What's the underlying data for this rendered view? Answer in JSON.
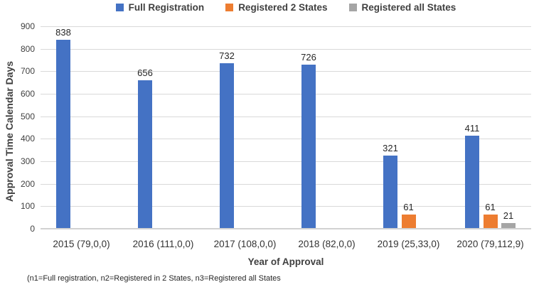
{
  "legend": [
    {
      "label": "Full Registration",
      "color": "#4472C4"
    },
    {
      "label": "Registered 2 States",
      "color": "#ED7D31"
    },
    {
      "label": "Registered all States",
      "color": "#A5A5A5"
    }
  ],
  "chart_data": {
    "type": "bar",
    "title": "",
    "categories": [
      "2015 (79,0,0)",
      "2016 (111,0,0)",
      "2017 (108,0,0)",
      "2018 (82,0,0)",
      "2019 (25,33,0)",
      "2020 (79,112,9)"
    ],
    "series": [
      {
        "name": "Full Registration",
        "color": "#4472C4",
        "values": [
          838,
          656,
          732,
          726,
          321,
          411
        ]
      },
      {
        "name": "Registered 2 States",
        "color": "#ED7D31",
        "values": [
          0,
          0,
          0,
          0,
          61,
          61
        ]
      },
      {
        "name": "Registered all States",
        "color": "#A5A5A5",
        "values": [
          0,
          0,
          0,
          0,
          0,
          21
        ]
      }
    ],
    "xlabel": "Year of Approval",
    "ylabel": "Approval Time Calendar Days",
    "ylim": [
      0,
      900
    ],
    "ytick_step": 100,
    "grid": true,
    "legend_position": "top",
    "data_labels": true
  },
  "footnote": "(n1=Full registration, n2=Registered in 2 States, n3=Registered all States"
}
